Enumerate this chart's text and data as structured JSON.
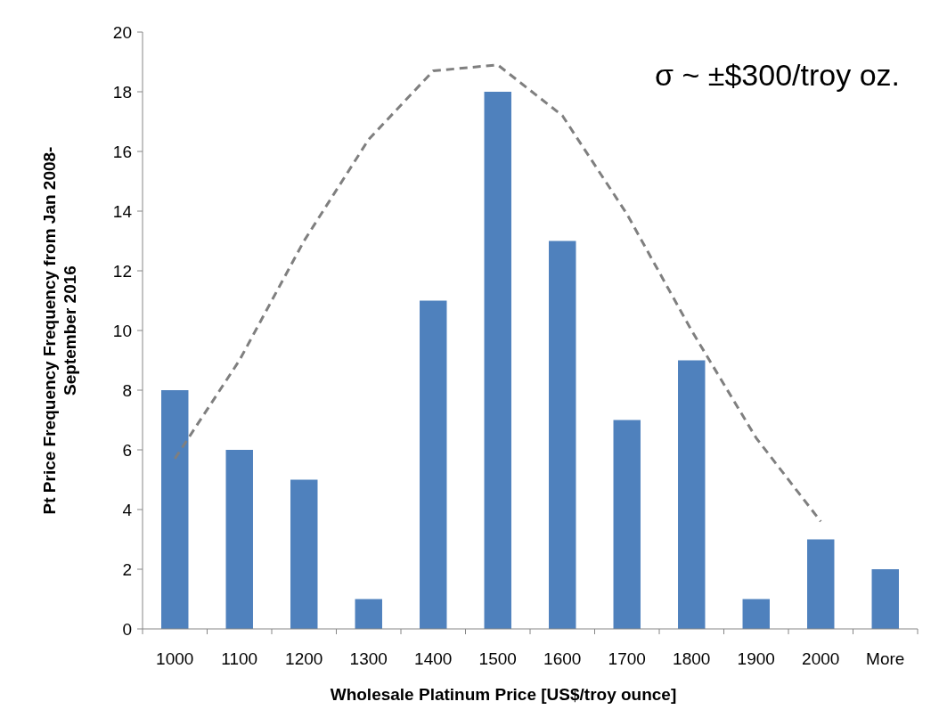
{
  "chart_data": {
    "type": "bar",
    "xlabel": "Wholesale Platinum Price [US$/troy ounce]",
    "ylabel": "Pt Price Frequency Frequency from Jan 2008-\nSeptember 2016",
    "categories": [
      "1000",
      "1100",
      "1200",
      "1300",
      "1400",
      "1500",
      "1600",
      "1700",
      "1800",
      "1900",
      "2000",
      "More"
    ],
    "series": [
      {
        "color": "#4f81bd",
        "values": [
          8,
          6,
          5,
          1,
          11,
          18,
          13,
          7,
          9,
          1,
          3,
          2
        ]
      },
      {
        "type": "line",
        "color": "#7f7f7f",
        "line_style": "dashed",
        "values": [
          5.7,
          9.0,
          13.0,
          16.4,
          18.7,
          18.9,
          17.2,
          13.9,
          10.0,
          6.4,
          3.6,
          null
        ]
      }
    ],
    "ylim": [
      0,
      20
    ],
    "yticks": [
      0,
      2,
      4,
      6,
      8,
      10,
      12,
      14,
      16,
      18,
      20
    ],
    "grid": false,
    "annotations": [
      "σ ~ ±$300/troy oz."
    ]
  }
}
